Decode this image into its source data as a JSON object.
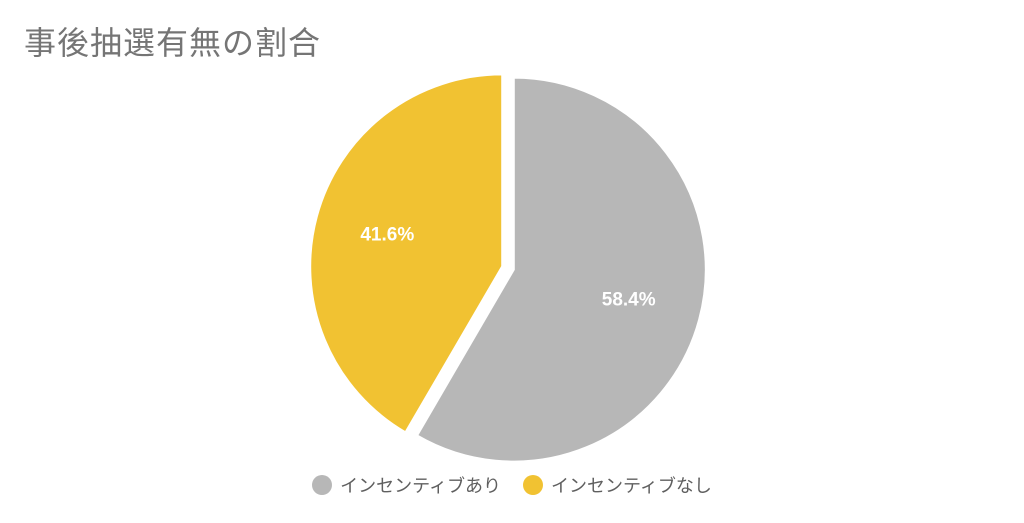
{
  "chart_data": {
    "type": "pie",
    "title": "事後抽選有無の割合",
    "slices": [
      {
        "label": "インセンティブあり",
        "value": 58.4,
        "display": "58.4%",
        "color": "#b7b7b7"
      },
      {
        "label": "インセンティブなし",
        "value": 41.6,
        "display": "41.6%",
        "color": "#f1c232"
      }
    ],
    "start": "12 o'clock",
    "direction": "clockwise",
    "exploded": true,
    "legend_position": "bottom"
  }
}
